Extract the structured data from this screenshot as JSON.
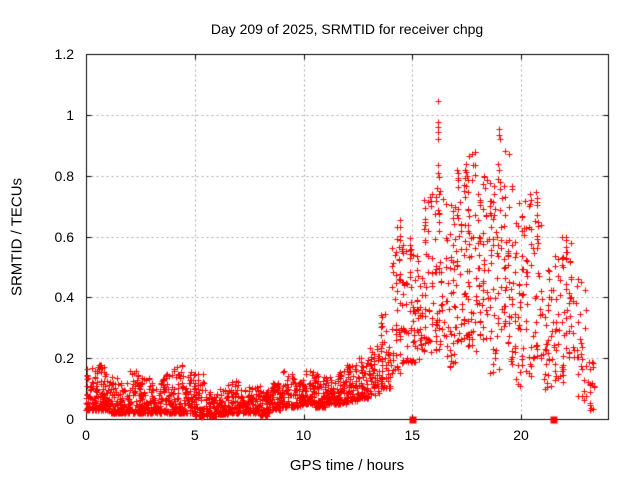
{
  "chart_data": {
    "type": "scatter",
    "title": "Day 209 of 2025, SRMTID for receiver chpg",
    "xlabel": "GPS time / hours",
    "ylabel": "SRMTID / TECUs",
    "xlim": [
      0,
      24
    ],
    "ylim": [
      0,
      1.2
    ],
    "x_ticks": [
      0,
      5,
      10,
      15,
      20
    ],
    "x_tick_labels": [
      "0",
      "5",
      "10",
      "15",
      "20"
    ],
    "y_ticks": [
      0,
      0.2,
      0.4,
      0.6,
      0.8,
      1,
      1.2
    ],
    "y_tick_labels": [
      "0",
      "0.2",
      "0.4",
      "0.6",
      "0.8",
      "1",
      "1.2"
    ],
    "grid": true,
    "grid_style": "dashed",
    "legend": "none",
    "marker": "plus",
    "marker_size_px": 7,
    "point_color": "#ff0000",
    "grid_color": "#a8a8a8",
    "axis_color": "#000000",
    "background": "#ffffff",
    "seed": 20925,
    "description": "Scatter of SRMTID values vs GPS time; quiet band ~0.02-0.18 TECU from 0-13 h, rising activity after 13 h, peak 1.05 TECU near 16.2 h, dense disturbance 0.2-0.95 TECU between 15-21 h, tapering to ~0.05-0.2 by 23.3 h",
    "density_bins": [
      [
        0.0,
        0.5,
        0.03,
        0.17,
        70,
        2.2
      ],
      [
        0.5,
        1.0,
        0.03,
        0.18,
        70,
        2.2
      ],
      [
        1.0,
        1.5,
        0.02,
        0.14,
        60,
        2.2
      ],
      [
        1.5,
        2.0,
        0.02,
        0.12,
        60,
        2.0
      ],
      [
        2.0,
        2.5,
        0.02,
        0.16,
        60,
        2.2
      ],
      [
        2.5,
        3.0,
        0.02,
        0.14,
        60,
        2.2
      ],
      [
        3.0,
        3.5,
        0.02,
        0.12,
        60,
        2.0
      ],
      [
        3.5,
        4.0,
        0.02,
        0.15,
        60,
        2.2
      ],
      [
        4.0,
        4.5,
        0.02,
        0.18,
        60,
        2.4
      ],
      [
        4.5,
        5.0,
        0.02,
        0.16,
        60,
        2.2
      ],
      [
        5.0,
        5.5,
        0.01,
        0.15,
        60,
        2.2
      ],
      [
        5.5,
        6.0,
        0.01,
        0.09,
        60,
        2.0
      ],
      [
        6.0,
        6.5,
        0.015,
        0.1,
        60,
        2.0
      ],
      [
        6.5,
        7.0,
        0.02,
        0.13,
        60,
        2.2
      ],
      [
        7.0,
        7.5,
        0.02,
        0.1,
        60,
        2.0
      ],
      [
        7.5,
        8.0,
        0.02,
        0.11,
        60,
        2.0
      ],
      [
        8.0,
        8.5,
        0.01,
        0.1,
        60,
        2.0
      ],
      [
        8.5,
        9.0,
        0.03,
        0.12,
        60,
        2.0
      ],
      [
        9.0,
        9.5,
        0.04,
        0.16,
        60,
        2.2
      ],
      [
        9.5,
        10.0,
        0.04,
        0.14,
        60,
        2.0
      ],
      [
        10.0,
        10.5,
        0.05,
        0.16,
        60,
        2.0
      ],
      [
        10.5,
        11.0,
        0.04,
        0.15,
        60,
        2.2
      ],
      [
        11.0,
        11.5,
        0.05,
        0.14,
        60,
        2.0
      ],
      [
        11.5,
        12.0,
        0.05,
        0.16,
        60,
        2.0
      ],
      [
        12.0,
        12.5,
        0.06,
        0.18,
        60,
        2.0
      ],
      [
        12.5,
        13.0,
        0.07,
        0.2,
        55,
        2.0
      ],
      [
        13.0,
        13.5,
        0.08,
        0.24,
        50,
        1.8
      ],
      [
        13.5,
        14.0,
        0.1,
        0.35,
        50,
        1.8
      ],
      [
        14.0,
        14.5,
        0.15,
        0.66,
        48,
        1.8
      ],
      [
        14.5,
        15.0,
        0.18,
        0.62,
        45,
        1.5
      ],
      [
        15.0,
        15.5,
        0.18,
        0.55,
        42,
        1.3
      ],
      [
        15.5,
        16.0,
        0.22,
        0.75,
        40,
        1.4
      ],
      [
        16.0,
        16.5,
        0.22,
        0.78,
        45,
        1.3
      ],
      [
        16.5,
        17.0,
        0.17,
        0.72,
        45,
        1.2
      ],
      [
        17.0,
        17.5,
        0.25,
        0.85,
        50,
        1.3
      ],
      [
        17.5,
        18.0,
        0.2,
        0.88,
        50,
        1.3
      ],
      [
        18.0,
        18.5,
        0.25,
        0.8,
        48,
        1.2
      ],
      [
        18.5,
        19.0,
        0.15,
        0.8,
        45,
        1.2
      ],
      [
        19.0,
        19.5,
        0.25,
        0.9,
        42,
        1.3
      ],
      [
        19.5,
        20.0,
        0.1,
        0.78,
        40,
        1.2
      ],
      [
        20.0,
        20.5,
        0.12,
        0.72,
        38,
        1.2
      ],
      [
        20.5,
        21.0,
        0.18,
        0.75,
        36,
        1.3
      ],
      [
        21.0,
        21.5,
        0.1,
        0.5,
        32,
        1.3
      ],
      [
        21.5,
        22.0,
        0.1,
        0.56,
        36,
        1.2
      ],
      [
        22.0,
        22.5,
        0.2,
        0.6,
        32,
        1.2
      ],
      [
        22.5,
        23.0,
        0.05,
        0.5,
        26,
        1.4
      ],
      [
        23.0,
        23.35,
        0.03,
        0.2,
        18,
        1.5
      ]
    ],
    "highlight_points": [
      [
        16.18,
        1.045
      ],
      [
        16.18,
        0.975
      ],
      [
        16.18,
        0.96
      ],
      [
        16.18,
        0.945
      ],
      [
        16.2,
        0.92
      ],
      [
        16.17,
        0.835
      ],
      [
        16.2,
        0.81
      ],
      [
        16.22,
        0.795
      ],
      [
        16.15,
        0.76
      ],
      [
        16.25,
        0.74
      ],
      [
        18.97,
        0.955
      ],
      [
        19.0,
        0.935
      ],
      [
        19.02,
        0.92
      ],
      [
        18.95,
        0.84
      ],
      [
        19.0,
        0.82
      ],
      [
        19.05,
        0.78
      ],
      [
        17.45,
        0.84
      ],
      [
        17.5,
        0.8
      ],
      [
        17.4,
        0.77
      ],
      [
        18.3,
        0.8
      ],
      [
        18.35,
        0.76
      ],
      [
        20.4,
        0.74
      ],
      [
        20.45,
        0.72
      ],
      [
        20.35,
        0.7
      ],
      [
        14.42,
        0.655
      ],
      [
        14.45,
        0.63
      ],
      [
        15.8,
        0.73
      ],
      [
        15.85,
        0.7
      ],
      [
        5.3,
        0.005
      ],
      [
        8.3,
        0.01
      ],
      [
        21.9,
        0.6
      ],
      [
        22.3,
        0.58
      ]
    ],
    "zero_square_points_x": [
      15.0,
      21.47
    ]
  }
}
